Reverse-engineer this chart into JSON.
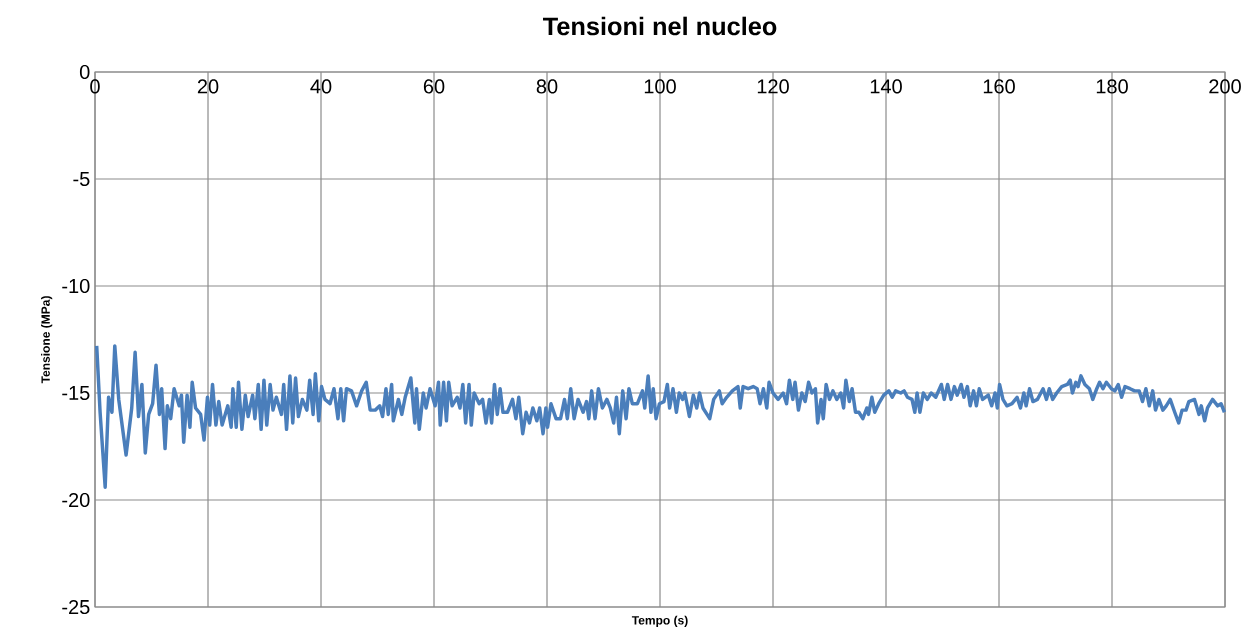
{
  "chart_data": {
    "type": "line",
    "title": "Tensioni nel nucleo",
    "xlabel": "Tempo (s)",
    "ylabel": "Tensione (MPa)",
    "x": [
      0.3,
      0.9,
      1.8,
      2.4,
      3.0,
      3.5,
      4.2,
      5.5,
      6.5,
      7.1,
      7.7,
      8.3,
      8.9,
      9.5,
      10.2,
      10.8,
      11.4,
      11.8,
      12.4,
      12.8,
      13.4,
      14.0,
      14.9,
      15.3,
      15.7,
      16.3,
      16.8,
      17.2,
      17.8,
      18.7,
      19.3,
      19.9,
      20.3,
      20.8,
      21.4,
      21.9,
      22.5,
      23.5,
      24.1,
      24.4,
      25.0,
      25.4,
      26.0,
      26.6,
      27.1,
      27.9,
      28.3,
      28.9,
      29.4,
      29.9,
      30.4,
      31.0,
      31.5,
      32.1,
      33.0,
      33.4,
      33.9,
      34.5,
      35.0,
      35.5,
      36.0,
      36.7,
      37.5,
      38.0,
      38.6,
      39.0,
      39.6,
      40.1,
      40.7,
      41.6,
      42.3,
      43.0,
      43.5,
      44.0,
      44.5,
      45.4,
      46.3,
      47.2,
      48.0,
      48.7,
      49.6,
      50.4,
      50.9,
      51.5,
      51.9,
      52.5,
      52.8,
      53.7,
      54.3,
      54.9,
      55.9,
      56.6,
      56.9,
      57.4,
      58.1,
      58.6,
      59.3,
      60.2,
      60.8,
      61.1,
      61.7,
      62.2,
      62.6,
      63.2,
      64.1,
      64.6,
      65.1,
      65.6,
      66.2,
      66.6,
      67.1,
      68.0,
      68.6,
      69.2,
      69.8,
      70.2,
      70.7,
      71.2,
      71.7,
      72.2,
      73.0,
      73.9,
      74.5,
      75.0,
      75.7,
      76.3,
      76.9,
      77.5,
      78.2,
      78.7,
      79.3,
      79.8,
      80.1,
      80.7,
      81.6,
      82.4,
      83.1,
      83.6,
      84.2,
      84.8,
      85.5,
      86.4,
      87.0,
      87.4,
      87.9,
      88.5,
      89.1,
      89.8,
      90.6,
      91.2,
      91.8,
      92.3,
      92.8,
      93.4,
      94.0,
      94.5,
      95.1,
      96.0,
      96.9,
      97.3,
      97.9,
      98.4,
      98.8,
      99.3,
      99.9,
      100.7,
      101.3,
      101.7,
      102.3,
      102.9,
      103.4,
      104.0,
      104.4,
      105.2,
      105.9,
      106.5,
      107.0,
      107.6,
      108.8,
      109.5,
      110.5,
      111.0,
      111.8,
      112.8,
      113.8,
      114.2,
      114.7,
      115.6,
      116.5,
      117.2,
      117.7,
      118.3,
      118.9,
      119.3,
      120.0,
      120.9,
      121.8,
      122.4,
      122.9,
      123.5,
      123.9,
      124.5,
      125.1,
      125.7,
      126.3,
      126.9,
      127.5,
      127.9,
      128.5,
      128.9,
      129.4,
      130.0,
      130.6,
      131.3,
      132.0,
      132.5,
      132.9,
      133.5,
      134.0,
      134.6,
      135.2,
      135.9,
      136.6,
      136.9,
      137.5,
      138.0,
      138.7,
      139.6,
      140.5,
      141.1,
      141.7,
      142.6,
      143.2,
      143.8,
      144.6,
      145.1,
      145.5,
      146.0,
      146.6,
      147.3,
      148.0,
      148.8,
      149.3,
      149.8,
      150.3,
      150.9,
      151.5,
      152.1,
      152.6,
      153.3,
      153.8,
      154.4,
      154.9,
      155.5,
      156.0,
      156.5,
      157.1,
      158.1,
      158.7,
      159.3,
      159.7,
      160.1,
      160.7,
      161.4,
      162.3,
      163.2,
      163.8,
      164.4,
      164.8,
      165.4,
      166.0,
      166.8,
      167.8,
      168.4,
      168.9,
      169.5,
      170.2,
      171.1,
      172.1,
      172.6,
      173.0,
      173.6,
      174.0,
      174.5,
      175.2,
      176.0,
      176.6,
      177.3,
      177.8,
      178.4,
      179.0,
      179.9,
      180.5,
      181.1,
      181.7,
      182.3,
      183.2,
      184.0,
      184.8,
      185.4,
      186.0,
      186.6,
      187.2,
      187.7,
      188.3,
      189.0,
      189.6,
      190.3,
      191.1,
      191.8,
      192.4,
      193.1,
      193.6,
      194.6,
      195.4,
      195.8,
      196.4,
      196.9,
      197.8,
      198.7,
      199.3,
      199.9
    ],
    "series": [
      {
        "color": "#4a7ebb",
        "values": [
          -12.8,
          -15.9,
          -19.4,
          -15.2,
          -15.9,
          -12.8,
          -15.3,
          -17.9,
          -15.7,
          -13.1,
          -16.1,
          -14.6,
          -17.8,
          -16.0,
          -15.5,
          -13.7,
          -16.0,
          -14.8,
          -17.6,
          -15.6,
          -16.2,
          -14.8,
          -15.6,
          -15.1,
          -17.3,
          -15.1,
          -16.6,
          -14.5,
          -15.7,
          -16.0,
          -17.2,
          -15.2,
          -16.5,
          -14.6,
          -16.5,
          -15.4,
          -16.5,
          -15.6,
          -16.6,
          -14.8,
          -16.6,
          -14.5,
          -16.7,
          -15.1,
          -16.1,
          -15.1,
          -16.2,
          -14.6,
          -16.7,
          -14.4,
          -16.5,
          -14.6,
          -15.8,
          -15.2,
          -16.0,
          -14.6,
          -16.7,
          -14.2,
          -16.4,
          -14.3,
          -16.1,
          -15.3,
          -15.8,
          -14.4,
          -16.0,
          -14.1,
          -16.3,
          -14.7,
          -15.3,
          -15.5,
          -14.8,
          -16.2,
          -14.8,
          -16.3,
          -14.8,
          -14.9,
          -15.6,
          -14.9,
          -14.5,
          -15.8,
          -15.8,
          -15.6,
          -16.1,
          -14.8,
          -16.0,
          -14.6,
          -16.3,
          -15.3,
          -16.0,
          -15.2,
          -14.3,
          -16.4,
          -14.8,
          -16.7,
          -15.0,
          -15.7,
          -14.8,
          -15.6,
          -14.5,
          -16.5,
          -14.5,
          -16.3,
          -14.5,
          -15.6,
          -15.2,
          -15.7,
          -14.6,
          -16.4,
          -14.6,
          -16.5,
          -15.0,
          -15.5,
          -15.3,
          -16.4,
          -15.3,
          -16.4,
          -14.6,
          -16.0,
          -14.8,
          -15.9,
          -15.9,
          -15.3,
          -16.2,
          -15.2,
          -16.9,
          -15.9,
          -16.4,
          -15.7,
          -16.3,
          -15.7,
          -16.9,
          -15.7,
          -16.6,
          -15.5,
          -16.2,
          -16.2,
          -15.3,
          -16.2,
          -14.8,
          -16.2,
          -15.3,
          -15.9,
          -15.4,
          -16.2,
          -14.9,
          -16.2,
          -14.8,
          -15.7,
          -15.3,
          -15.7,
          -16.4,
          -15.2,
          -16.9,
          -14.9,
          -16.2,
          -14.8,
          -15.5,
          -15.5,
          -14.9,
          -15.7,
          -14.2,
          -15.9,
          -14.8,
          -16.2,
          -15.5,
          -15.4,
          -14.6,
          -15.7,
          -14.8,
          -15.9,
          -15.0,
          -15.3,
          -15.0,
          -16.1,
          -15.1,
          -15.7,
          -15.0,
          -15.7,
          -16.2,
          -15.3,
          -14.9,
          -15.5,
          -15.2,
          -14.9,
          -14.7,
          -15.7,
          -14.7,
          -14.8,
          -14.7,
          -14.8,
          -15.5,
          -14.8,
          -15.7,
          -14.5,
          -15.0,
          -15.3,
          -15.0,
          -15.5,
          -14.4,
          -15.3,
          -14.5,
          -15.8,
          -15.0,
          -15.4,
          -14.5,
          -15.0,
          -14.8,
          -16.4,
          -15.3,
          -16.2,
          -14.6,
          -15.3,
          -14.9,
          -15.3,
          -15.0,
          -15.7,
          -14.4,
          -15.4,
          -14.8,
          -15.9,
          -15.9,
          -16.2,
          -15.7,
          -16.0,
          -15.2,
          -15.9,
          -15.5,
          -15.1,
          -14.9,
          -15.2,
          -14.9,
          -15.0,
          -14.9,
          -15.2,
          -15.3,
          -15.9,
          -15.0,
          -15.9,
          -15.0,
          -15.3,
          -15.0,
          -15.2,
          -14.9,
          -14.6,
          -15.3,
          -14.6,
          -15.3,
          -14.7,
          -15.1,
          -14.6,
          -15.2,
          -14.7,
          -15.6,
          -14.9,
          -15.6,
          -14.8,
          -15.3,
          -15.1,
          -15.6,
          -15.0,
          -15.7,
          -14.6,
          -15.3,
          -15.6,
          -15.5,
          -15.2,
          -15.7,
          -15.0,
          -15.6,
          -14.8,
          -15.4,
          -15.3,
          -14.8,
          -15.3,
          -14.8,
          -15.3,
          -15.0,
          -14.7,
          -14.6,
          -14.4,
          -15.0,
          -14.5,
          -14.7,
          -14.2,
          -14.6,
          -14.8,
          -15.3,
          -14.8,
          -14.5,
          -14.8,
          -14.5,
          -14.8,
          -14.9,
          -14.6,
          -15.2,
          -14.7,
          -14.8,
          -14.9,
          -14.9,
          -15.4,
          -14.8,
          -15.6,
          -14.9,
          -15.8,
          -15.3,
          -15.8,
          -15.6,
          -15.3,
          -15.9,
          -16.4,
          -15.8,
          -15.8,
          -15.4,
          -15.3,
          -16.0,
          -15.6,
          -16.3,
          -15.7,
          -15.3,
          -15.6,
          -15.5,
          -15.9
        ]
      }
    ],
    "xlim": [
      0,
      200
    ],
    "ylim": [
      -25,
      0
    ],
    "xticks": [
      0,
      20,
      40,
      60,
      80,
      100,
      120,
      140,
      160,
      180,
      200
    ],
    "yticks": [
      -25,
      -20,
      -15,
      -10,
      -5,
      0
    ],
    "grid": true
  }
}
